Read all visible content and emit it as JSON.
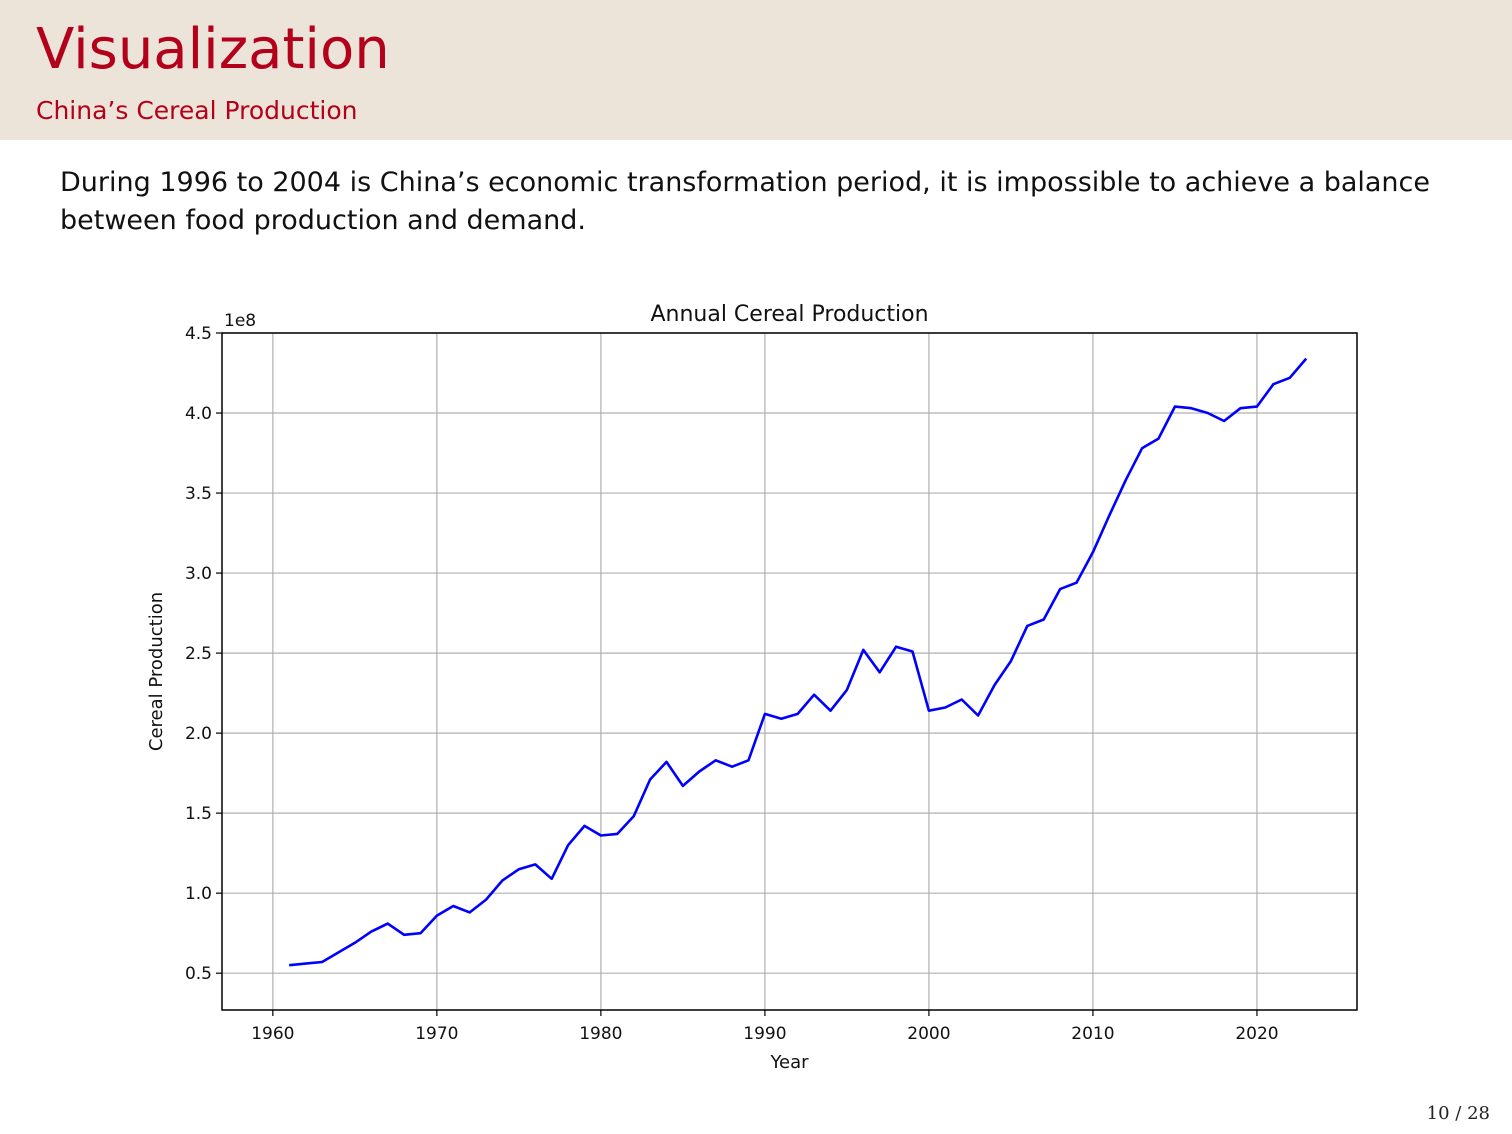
{
  "slide": {
    "title": "Visualization",
    "subtitle": "China’s Cereal Production",
    "body": "During 1996 to 2004 is China’s economic transformation period, it is impossible to achieve a balance between food production and demand.",
    "page_number": "10 / 28"
  },
  "colors": {
    "header_bg": "#ece4d8",
    "title": "#b3001b",
    "line": "#0000ff"
  },
  "chart_data": {
    "type": "line",
    "title": "Annual Cereal Production",
    "xlabel": "Year",
    "ylabel": "Cereal Production",
    "y_offset_label": "1e8",
    "xlim": [
      1956.9,
      2026.1
    ],
    "ylim": [
      0.27,
      4.5
    ],
    "xticks": [
      1960,
      1970,
      1980,
      1990,
      2000,
      2010,
      2020
    ],
    "yticks": [
      0.5,
      1.0,
      1.5,
      2.0,
      2.5,
      3.0,
      3.5,
      4.0,
      4.5
    ],
    "ytick_labels": [
      "0.5",
      "1.0",
      "1.5",
      "2.0",
      "2.5",
      "3.0",
      "3.5",
      "4.0",
      "4.5"
    ],
    "grid": true,
    "legend": false,
    "series": [
      {
        "color": "#0000ff",
        "x": [
          1961,
          1962,
          1963,
          1964,
          1965,
          1966,
          1967,
          1968,
          1969,
          1970,
          1971,
          1972,
          1973,
          1974,
          1975,
          1976,
          1977,
          1978,
          1979,
          1980,
          1981,
          1982,
          1983,
          1984,
          1985,
          1986,
          1987,
          1988,
          1989,
          1990,
          1991,
          1992,
          1993,
          1994,
          1995,
          1996,
          1997,
          1998,
          1999,
          2000,
          2001,
          2002,
          2003,
          2004,
          2005,
          2006,
          2007,
          2008,
          2009,
          2010,
          2011,
          2012,
          2013,
          2014,
          2015,
          2016,
          2017,
          2018,
          2019,
          2020,
          2021,
          2022,
          2023
        ],
        "y": [
          0.55,
          0.56,
          0.57,
          0.63,
          0.69,
          0.76,
          0.81,
          0.74,
          0.75,
          0.86,
          0.92,
          0.88,
          0.96,
          1.08,
          1.15,
          1.18,
          1.09,
          1.3,
          1.42,
          1.36,
          1.37,
          1.48,
          1.71,
          1.82,
          1.67,
          1.76,
          1.83,
          1.79,
          1.83,
          2.12,
          2.09,
          2.12,
          2.24,
          2.14,
          2.27,
          2.52,
          2.38,
          2.54,
          2.51,
          2.14,
          2.16,
          2.21,
          2.11,
          2.3,
          2.45,
          2.67,
          2.71,
          2.9,
          2.94,
          3.13,
          3.36,
          3.58,
          3.78,
          3.84,
          4.04,
          4.03,
          4.0,
          3.95,
          4.03,
          4.04,
          4.18,
          4.22,
          4.34
        ]
      }
    ]
  }
}
